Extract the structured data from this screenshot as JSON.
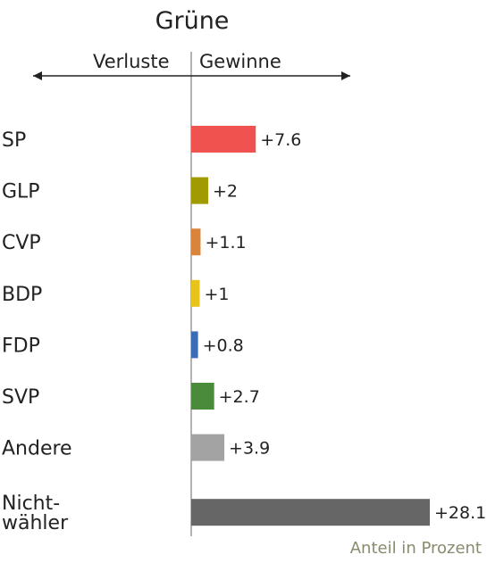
{
  "chart_data": {
    "type": "bar",
    "orientation": "horizontal",
    "title": "Grüne",
    "direction_labels": {
      "left": "Verluste",
      "right": "Gewinne"
    },
    "categories": [
      "SP",
      "GLP",
      "CVP",
      "BDP",
      "FDP",
      "SVP",
      "Andere",
      "Nicht-\nwähler"
    ],
    "values": [
      7.6,
      2,
      1.1,
      1,
      0.8,
      2.7,
      3.9,
      28.1
    ],
    "value_labels": [
      "+7.6",
      "+2",
      "+1.1",
      "+1",
      "+0.8",
      "+2.7",
      "+3.9",
      "+28.1"
    ],
    "colors": [
      "#f0524f",
      "#a19a00",
      "#d9843a",
      "#e8c31c",
      "#3a6db3",
      "#4a8b3b",
      "#a3a3a3",
      "#666666"
    ],
    "xlim": [
      0,
      28.1
    ],
    "footnote": "Anteil in Prozent"
  }
}
